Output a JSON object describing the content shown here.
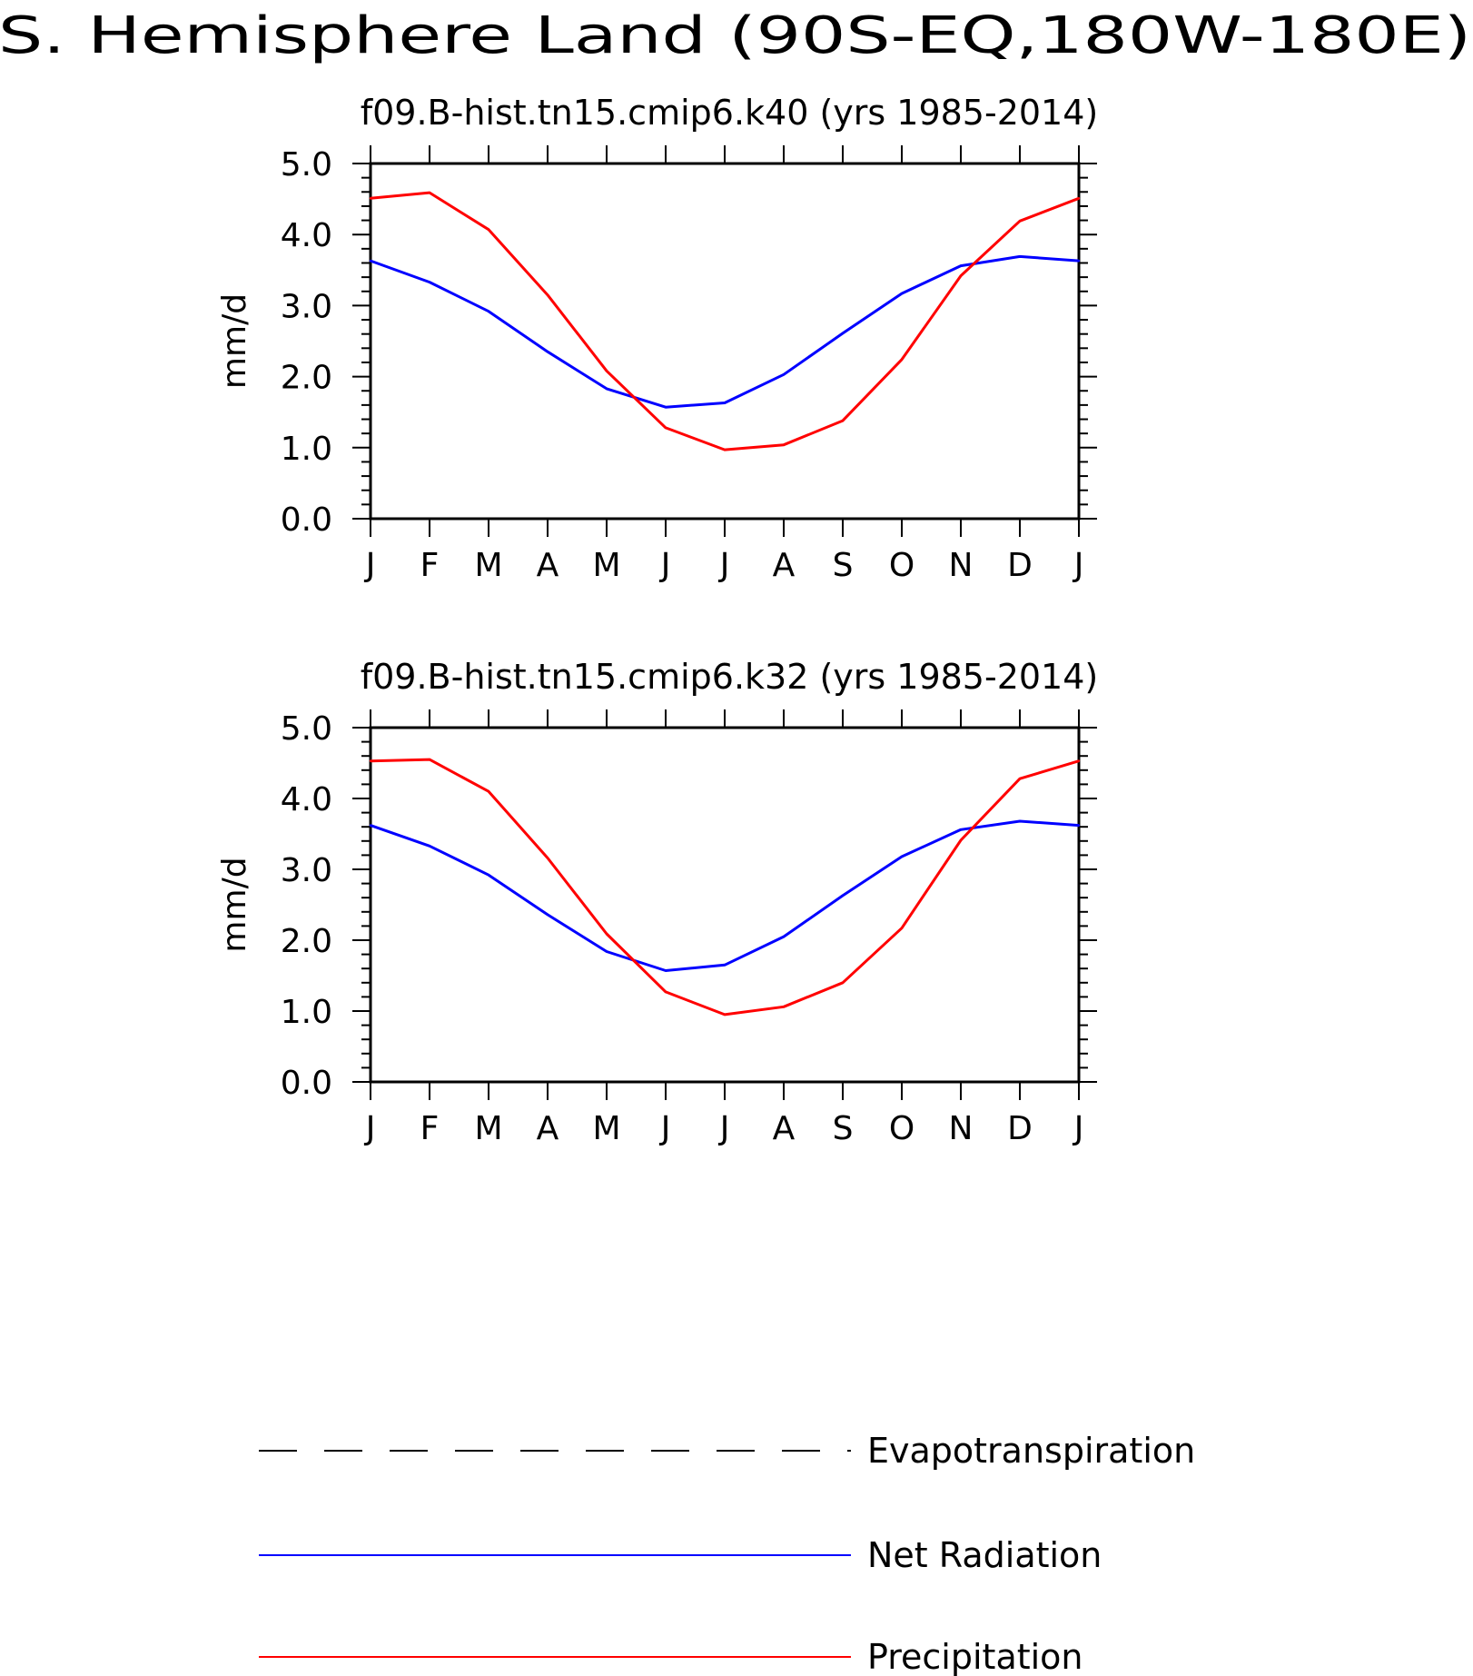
{
  "page": {
    "title": "S. Hemisphere Land (90S-EQ,180W-180E)"
  },
  "colors": {
    "net_radiation": "#0000ff",
    "precipitation": "#ff0000",
    "evapotranspiration": "#000000"
  },
  "legend": [
    {
      "label": "Evapotranspiration",
      "style": "dashed",
      "color": "#000000"
    },
    {
      "label": "Net Radiation",
      "style": "solid",
      "color": "#0000ff"
    },
    {
      "label": "Precipitation",
      "style": "solid",
      "color": "#ff0000"
    }
  ],
  "chart_data": [
    {
      "type": "line",
      "title": "f09.B-hist.tn15.cmip6.k40 (yrs 1985-2014)",
      "xlabel": "",
      "ylabel": "mm/d",
      "ylim": [
        0,
        5
      ],
      "yticks": [
        "0.0",
        "1.0",
        "2.0",
        "3.0",
        "4.0",
        "5.0"
      ],
      "categories": [
        "J",
        "F",
        "M",
        "A",
        "M",
        "J",
        "J",
        "A",
        "S",
        "O",
        "N",
        "D",
        "J"
      ],
      "grid": false,
      "series": [
        {
          "name": "Net Radiation",
          "color": "#0000ff",
          "values": [
            3.63,
            3.33,
            2.92,
            2.35,
            1.83,
            1.57,
            1.63,
            2.03,
            2.61,
            3.17,
            3.56,
            3.69,
            3.63
          ]
        },
        {
          "name": "Precipitation",
          "color": "#ff0000",
          "values": [
            4.51,
            4.59,
            4.07,
            3.15,
            2.08,
            1.28,
            0.97,
            1.04,
            1.38,
            2.24,
            3.42,
            4.19,
            4.51
          ]
        }
      ]
    },
    {
      "type": "line",
      "title": "f09.B-hist.tn15.cmip6.k32 (yrs 1985-2014)",
      "xlabel": "",
      "ylabel": "mm/d",
      "ylim": [
        0,
        5
      ],
      "yticks": [
        "0.0",
        "1.0",
        "2.0",
        "3.0",
        "4.0",
        "5.0"
      ],
      "categories": [
        "J",
        "F",
        "M",
        "A",
        "M",
        "J",
        "J",
        "A",
        "S",
        "O",
        "N",
        "D",
        "J"
      ],
      "grid": false,
      "series": [
        {
          "name": "Net Radiation",
          "color": "#0000ff",
          "values": [
            3.62,
            3.33,
            2.92,
            2.36,
            1.84,
            1.57,
            1.65,
            2.05,
            2.63,
            3.18,
            3.56,
            3.68,
            3.62
          ]
        },
        {
          "name": "Precipitation",
          "color": "#ff0000",
          "values": [
            4.53,
            4.55,
            4.1,
            3.16,
            2.09,
            1.27,
            0.95,
            1.06,
            1.4,
            2.17,
            3.41,
            4.28,
            4.53
          ]
        }
      ]
    }
  ]
}
